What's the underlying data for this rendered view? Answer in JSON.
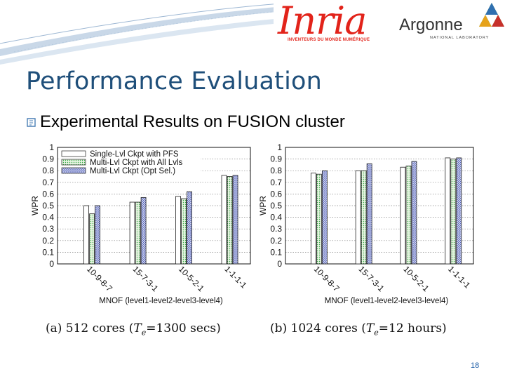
{
  "logos": {
    "inria": {
      "name": "Inria",
      "tagline": "INVENTEURS DU MONDE NUMÉRIQUE"
    },
    "argonne": {
      "name": "Argonne",
      "tagline": "NATIONAL LABORATORY"
    }
  },
  "slide": {
    "title": "Performance Evaluation",
    "bullet": "Experimental Results on FUSION cluster",
    "page_number": "18"
  },
  "colors": {
    "title": "#1f4f7a",
    "inria_red": "#e2231a",
    "swoosh": "#9db7d3"
  },
  "chart_data": [
    {
      "type": "bar",
      "caption_pre": "(a)  512 cores  (",
      "caption_sym": "T",
      "caption_sub": "e",
      "caption_post": "=1300 secs)",
      "xlabel": "MNOF (level1-level2-level3-level4)",
      "ylabel": "WPR",
      "ylim": [
        0,
        1
      ],
      "yticks": [
        "0",
        "0.1",
        "0.2",
        "0.3",
        "0.4",
        "0.5",
        "0.6",
        "0.7",
        "0.8",
        "0.9",
        "1"
      ],
      "grid": true,
      "legend_position": "top-left",
      "categories": [
        "10-9-8-7",
        "15-7-3-1",
        "10-5-2-1",
        "1-1-1-1"
      ],
      "series": [
        {
          "name": "Single-Lvl Ckpt with PFS",
          "values": [
            0.5,
            0.53,
            0.58,
            0.76
          ]
        },
        {
          "name": "Multi-Lvl Ckpt with All Lvls",
          "values": [
            0.43,
            0.53,
            0.56,
            0.75
          ]
        },
        {
          "name": "Multi-Lvl Ckpt (Opt Sel.)",
          "values": [
            0.5,
            0.57,
            0.62,
            0.76
          ]
        }
      ]
    },
    {
      "type": "bar",
      "caption_pre": "(b)  1024 cores  (",
      "caption_sym": "T",
      "caption_sub": "e",
      "caption_post": "=12 hours)",
      "xlabel": "MNOF (level1-level2-level3-level4)",
      "ylabel": "WPR",
      "ylim": [
        0,
        1
      ],
      "yticks": [
        "0",
        "0.1",
        "0.2",
        "0.3",
        "0.4",
        "0.5",
        "0.6",
        "0.7",
        "0.8",
        "0.9",
        "1"
      ],
      "grid": true,
      "categories": [
        "10-9-8-7",
        "15-7-3-1",
        "10-5-2-1",
        "1-1-1-1"
      ],
      "series": [
        {
          "values": [
            0.78,
            0.8,
            0.83,
            0.91
          ]
        },
        {
          "values": [
            0.77,
            0.8,
            0.84,
            0.9
          ]
        },
        {
          "values": [
            0.8,
            0.86,
            0.88,
            0.91
          ]
        }
      ]
    }
  ]
}
